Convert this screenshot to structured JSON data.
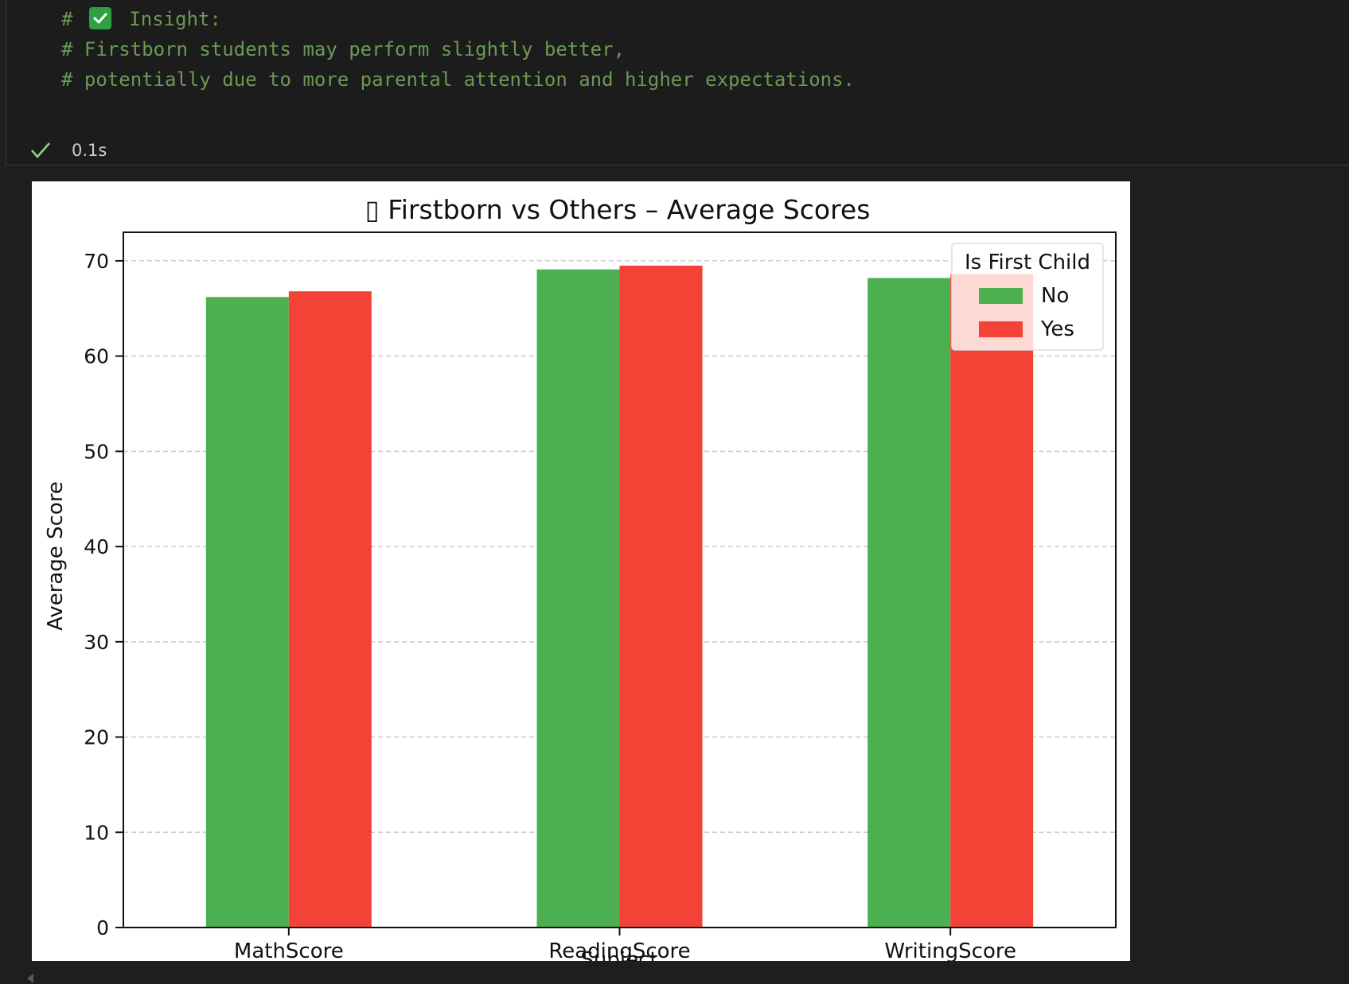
{
  "code_cell": {
    "lines": [
      {
        "prefix": "# ",
        "text": " Insight:",
        "has_check_icon": true
      },
      {
        "prefix": "",
        "text": "# Firstborn students may perform slightly better,",
        "has_check_icon": false
      },
      {
        "prefix": "",
        "text": "# potentially due to more parental attention and higher expectations.",
        "has_check_icon": false
      }
    ],
    "status": {
      "time": "0.1s",
      "icon": "check-icon",
      "color": "#89d185"
    }
  },
  "chart_data": {
    "type": "bar",
    "title": "▯ Firstborn vs Others – Average Scores",
    "xlabel": "Subject",
    "ylabel": "Average Score",
    "categories": [
      "MathScore",
      "ReadingScore",
      "WritingScore"
    ],
    "series": [
      {
        "name": "No",
        "values": [
          66.2,
          69.1,
          68.2
        ],
        "color": "#4caf50"
      },
      {
        "name": "Yes",
        "values": [
          66.8,
          69.5,
          68.6
        ],
        "color": "#f44336"
      }
    ],
    "ylim": [
      0,
      73
    ],
    "yticks": [
      0,
      10,
      20,
      30,
      40,
      50,
      60,
      70
    ],
    "grid": "y-dashed",
    "legend": {
      "title": "Is First Child",
      "position": "top-right"
    }
  }
}
